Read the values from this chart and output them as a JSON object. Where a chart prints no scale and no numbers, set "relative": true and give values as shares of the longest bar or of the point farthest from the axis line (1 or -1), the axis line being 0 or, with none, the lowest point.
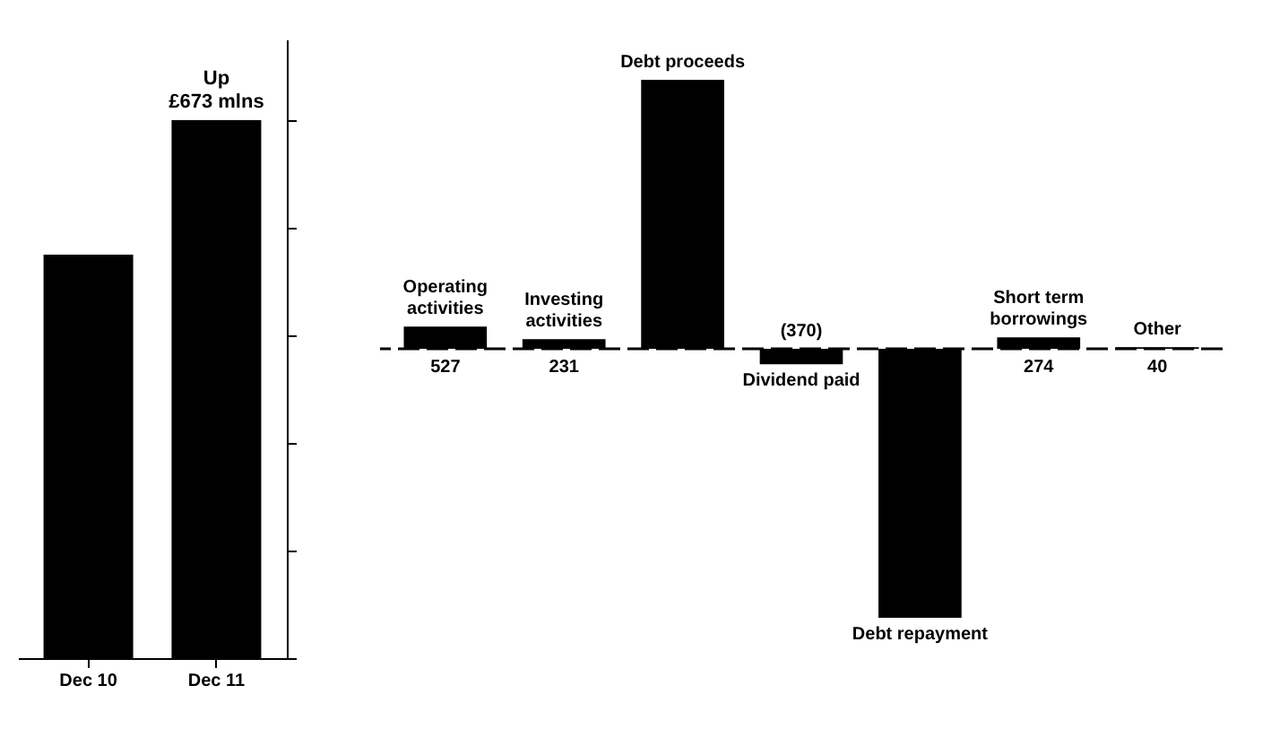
{
  "chart_data": [
    {
      "type": "bar",
      "categories": [
        "Dec 10",
        "Dec 11"
      ],
      "values": [
        0.75,
        1
      ],
      "color": "#000000",
      "relative": true,
      "annotations": [
        {
          "text": "Up\n£673 mlns",
          "x": "Dec 11",
          "y": 1
        }
      ]
    },
    {
      "type": "bar",
      "categories": [
        "Operating activities",
        "Investing activities",
        "Debt proceeds",
        "Dividend paid",
        "Debt repayment",
        "Short term borrowings",
        "Other"
      ],
      "values": [
        527,
        231,
        6400,
        -370,
        -6400,
        274,
        40
      ],
      "color": "#000000",
      "value_labels": [
        "527",
        "231",
        null,
        "(370)",
        null,
        "274",
        "40"
      ],
      "ref_lines": [
        {
          "axis": "y",
          "value": 0,
          "line_style": "dashed"
        }
      ]
    }
  ]
}
